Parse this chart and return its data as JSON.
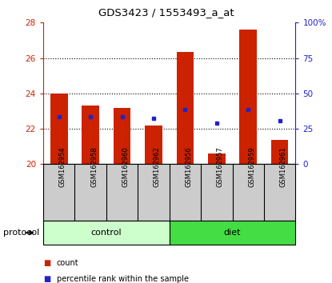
{
  "title": "GDS3423 / 1553493_a_at",
  "samples": [
    "GSM162954",
    "GSM162958",
    "GSM162960",
    "GSM162962",
    "GSM162956",
    "GSM162957",
    "GSM162959",
    "GSM162961"
  ],
  "n_control": 4,
  "n_diet": 4,
  "bar_bottom": 20,
  "bar_tops": [
    24.0,
    23.3,
    23.2,
    22.2,
    26.35,
    20.6,
    27.6,
    21.35
  ],
  "blue_dots_left_axis": [
    22.7,
    22.7,
    22.7,
    22.6,
    23.1,
    22.3,
    23.1,
    22.45
  ],
  "ylim_left": [
    20,
    28
  ],
  "ylim_right": [
    0,
    100
  ],
  "yticks_left": [
    20,
    22,
    24,
    26,
    28
  ],
  "yticks_right": [
    0,
    25,
    50,
    75,
    100
  ],
  "ytick_right_labels": [
    "0",
    "25",
    "50",
    "75",
    "100%"
  ],
  "bar_color": "#cc2200",
  "dot_color": "#2222cc",
  "control_color": "#ccffcc",
  "diet_color": "#44dd44",
  "label_bg_color": "#cccccc",
  "protocol_label": "protocol",
  "control_label": "control",
  "diet_label": "diet",
  "legend_count": "count",
  "legend_percentile": "percentile rank within the sample",
  "bar_width": 0.55,
  "figsize": [
    4.15,
    3.54
  ],
  "dpi": 100,
  "grid_yticks": [
    22,
    24,
    26
  ],
  "left_axis_color": "#cc2200",
  "right_axis_color": "#2222cc"
}
